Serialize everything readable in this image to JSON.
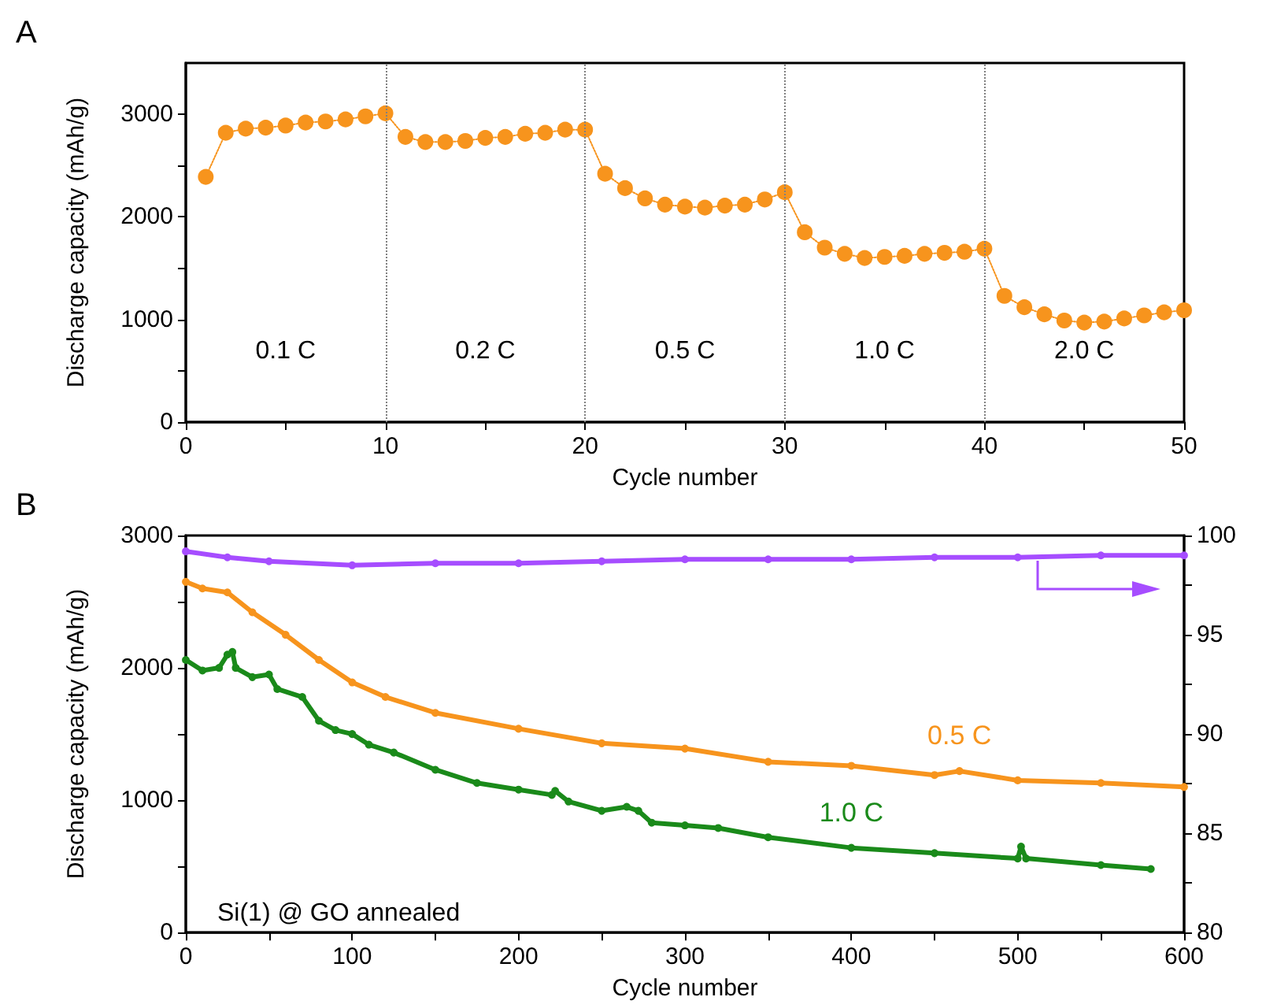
{
  "chart_data": [
    {
      "type": "line",
      "title": "A",
      "xlabel": "Cycle number",
      "ylabel": "Discharge capacity (mAh/g)",
      "x": [
        1,
        2,
        3,
        4,
        5,
        6,
        7,
        8,
        9,
        10,
        11,
        12,
        13,
        14,
        15,
        16,
        17,
        18,
        19,
        20,
        21,
        22,
        23,
        24,
        25,
        26,
        27,
        28,
        29,
        30,
        31,
        32,
        33,
        34,
        35,
        36,
        37,
        38,
        39,
        40,
        41,
        42,
        43,
        44,
        45,
        46,
        47,
        48,
        49,
        50
      ],
      "series": [
        {
          "color": "#f7941d",
          "values": [
            2390,
            2820,
            2860,
            2870,
            2890,
            2920,
            2930,
            2950,
            2980,
            3010,
            2780,
            2730,
            2730,
            2740,
            2770,
            2780,
            2810,
            2820,
            2850,
            2850,
            2420,
            2280,
            2180,
            2120,
            2100,
            2090,
            2110,
            2120,
            2170,
            2240,
            1850,
            1700,
            1640,
            1600,
            1610,
            1620,
            1640,
            1650,
            1660,
            1690,
            1230,
            1120,
            1050,
            990,
            970,
            980,
            1010,
            1040,
            1070,
            1090
          ]
        }
      ],
      "xlim": [
        0,
        50
      ],
      "xticks": [
        0,
        {
          "value": 5,
          "label": null
        },
        10,
        {
          "value": 15,
          "label": null
        },
        20,
        {
          "value": 25,
          "label": null
        },
        30,
        {
          "value": 35,
          "label": null
        },
        40,
        {
          "value": 45,
          "label": null
        },
        50
      ],
      "ylim": [
        0,
        3500
      ],
      "yticks": [
        0,
        {
          "value": 500,
          "label": null
        },
        1000,
        {
          "value": 1500,
          "label": null
        },
        2000,
        {
          "value": 2500,
          "label": null
        },
        3000
      ],
      "ref_lines": [
        {
          "axis": "x",
          "value": 10,
          "color": "#808080",
          "line_style": "dotted"
        },
        {
          "axis": "x",
          "value": 20,
          "color": "#808080",
          "line_style": "dotted"
        },
        {
          "axis": "x",
          "value": 30,
          "color": "#808080",
          "line_style": "dotted"
        },
        {
          "axis": "x",
          "value": 40,
          "color": "#808080",
          "line_style": "dotted"
        }
      ],
      "annotations": [
        "0.1 C",
        "0.2 C",
        "0.5 C",
        "1.0 C",
        "2.0 C"
      ],
      "marker": "circle",
      "line_style": "dotted",
      "grid": false,
      "legend": false
    },
    {
      "type": "line",
      "title": "B",
      "xlabel": "Cycle number",
      "ylabel": "Discharge capacity (mAh/g)",
      "series": [
        {
          "name": "0.5 C",
          "color": "#f7941d",
          "x": [
            0,
            10,
            25,
            40,
            60,
            80,
            100,
            120,
            150,
            200,
            250,
            300,
            350,
            400,
            450,
            465,
            500,
            550,
            600
          ],
          "values": [
            2650,
            2600,
            2570,
            2420,
            2250,
            2060,
            1890,
            1780,
            1660,
            1540,
            1430,
            1390,
            1290,
            1260,
            1190,
            1220,
            1150,
            1130,
            1100
          ]
        },
        {
          "name": "1.0 C",
          "color": "#1a8a1a",
          "x": [
            0,
            10,
            20,
            25,
            28,
            30,
            40,
            50,
            55,
            70,
            80,
            90,
            100,
            110,
            125,
            150,
            175,
            200,
            220,
            222,
            230,
            250,
            265,
            272,
            280,
            300,
            320,
            350,
            400,
            450,
            500,
            502,
            505,
            550,
            580
          ],
          "values": [
            2060,
            1980,
            2000,
            2100,
            2120,
            2000,
            1930,
            1950,
            1840,
            1780,
            1600,
            1530,
            1500,
            1420,
            1360,
            1230,
            1130,
            1080,
            1040,
            1070,
            990,
            920,
            950,
            920,
            830,
            810,
            790,
            720,
            640,
            600,
            560,
            650,
            560,
            510,
            480
          ]
        },
        {
          "color": "#a64dff",
          "axis": "y2",
          "x": [
            0,
            25,
            50,
            100,
            150,
            200,
            250,
            300,
            350,
            400,
            450,
            500,
            550,
            600
          ],
          "values": [
            99.2,
            98.9,
            98.7,
            98.5,
            98.6,
            98.6,
            98.7,
            98.8,
            98.8,
            98.8,
            98.9,
            98.9,
            99.0,
            99.0
          ]
        }
      ],
      "xlim": [
        0,
        600
      ],
      "xticks": [
        0,
        {
          "value": 50,
          "label": null
        },
        100,
        {
          "value": 150,
          "label": null
        },
        200,
        {
          "value": 250,
          "label": null
        },
        300,
        {
          "value": 350,
          "label": null
        },
        400,
        {
          "value": 450,
          "label": null
        },
        500,
        {
          "value": 550,
          "label": null
        },
        600
      ],
      "ylim": [
        0,
        3000
      ],
      "yticks": [
        0,
        {
          "value": 500,
          "label": null
        },
        1000,
        {
          "value": 1500,
          "label": null
        },
        2000,
        {
          "value": 2500,
          "label": null
        },
        3000
      ],
      "y2lim": [
        80,
        100
      ],
      "y2ticks": [
        80,
        {
          "value": 82.5,
          "label": null
        },
        85,
        {
          "value": 87.5,
          "label": null
        },
        90,
        {
          "value": 92.5,
          "label": null
        },
        95,
        {
          "value": 97.5,
          "label": null
        },
        100
      ],
      "annotations": [
        "Si(1) @ GO annealed"
      ],
      "marker": "circle",
      "line_style": "solid",
      "grid": false,
      "legend": false
    }
  ]
}
